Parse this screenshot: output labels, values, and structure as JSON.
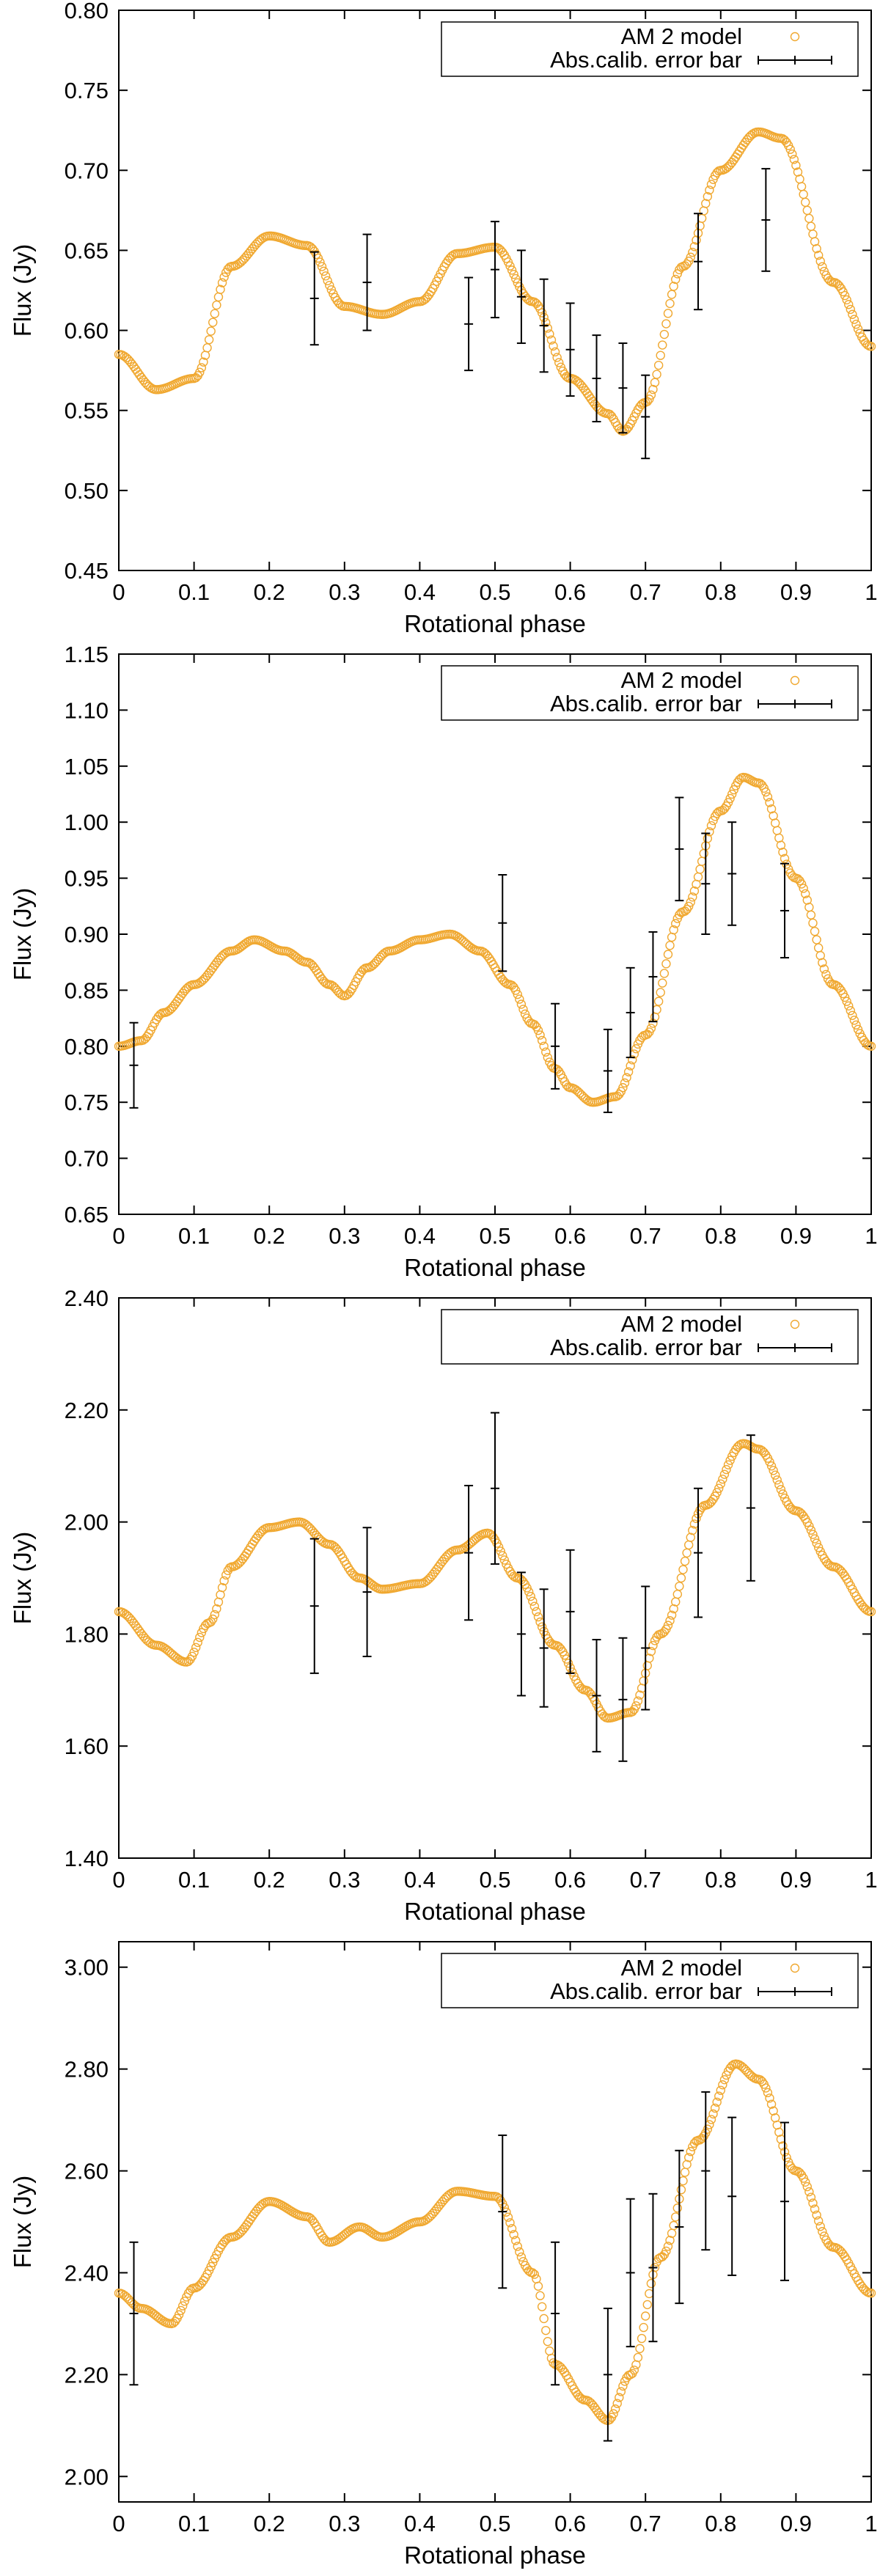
{
  "colors": {
    "model": "#f0a830",
    "errorbar": "#000000",
    "axes": "#000000",
    "background": "#ffffff"
  },
  "chart_data": [
    {
      "type": "scatter",
      "title": "",
      "xlabel": "Rotational phase",
      "ylabel": "Flux (Jy)",
      "xlim": [
        0,
        1
      ],
      "ylim": [
        0.45,
        0.8
      ],
      "xticks": [
        0,
        0.1,
        0.2,
        0.3,
        0.4,
        0.5,
        0.6,
        0.7,
        0.8,
        0.9,
        1
      ],
      "xtick_labels": [
        "0",
        "0.1",
        "0.2",
        "0.3",
        "0.4",
        "0.5",
        "0.6",
        "0.7",
        "0.8",
        "0.9",
        "1"
      ],
      "yticks": [
        0.45,
        0.5,
        0.55,
        0.6,
        0.65,
        0.7,
        0.75,
        0.8
      ],
      "ytick_labels": [
        "0.45",
        "0.50",
        "0.55",
        "0.60",
        "0.65",
        "0.70",
        "0.75",
        "0.80"
      ],
      "legend": {
        "position": "top-right",
        "entries": [
          "AM 2 model",
          "Abs.calib. error bar"
        ]
      },
      "series": [
        {
          "name": "AM 2 model",
          "kind": "curve",
          "x": [
            0.0,
            0.05,
            0.1,
            0.15,
            0.2,
            0.25,
            0.3,
            0.35,
            0.4,
            0.45,
            0.5,
            0.55,
            0.6,
            0.65,
            0.67,
            0.7,
            0.75,
            0.8,
            0.85,
            0.88,
            0.95,
            1.0
          ],
          "y": [
            0.585,
            0.563,
            0.57,
            0.64,
            0.659,
            0.653,
            0.615,
            0.61,
            0.618,
            0.648,
            0.652,
            0.618,
            0.57,
            0.548,
            0.537,
            0.555,
            0.64,
            0.7,
            0.724,
            0.72,
            0.63,
            0.59
          ]
        },
        {
          "name": "Abs.calib. error bar",
          "kind": "errorbar",
          "x": [
            0.26,
            0.33,
            0.465,
            0.5,
            0.535,
            0.565,
            0.6,
            0.635,
            0.67,
            0.7,
            0.77,
            0.86
          ],
          "y": [
            0.62,
            0.63,
            0.604,
            0.638,
            0.621,
            0.603,
            0.588,
            0.57,
            0.564,
            0.546,
            0.643,
            0.669
          ],
          "err": [
            0.029,
            0.03,
            0.029,
            0.03,
            0.029,
            0.029,
            0.029,
            0.027,
            0.028,
            0.026,
            0.03,
            0.032
          ]
        }
      ]
    },
    {
      "type": "scatter",
      "title": "",
      "xlabel": "Rotational phase",
      "ylabel": "Flux (Jy)",
      "xlim": [
        0,
        1
      ],
      "ylim": [
        0.65,
        1.15
      ],
      "xticks": [
        0,
        0.1,
        0.2,
        0.3,
        0.4,
        0.5,
        0.6,
        0.7,
        0.8,
        0.9,
        1
      ],
      "xtick_labels": [
        "0",
        "0.1",
        "0.2",
        "0.3",
        "0.4",
        "0.5",
        "0.6",
        "0.7",
        "0.8",
        "0.9",
        "1"
      ],
      "yticks": [
        0.65,
        0.7,
        0.75,
        0.8,
        0.85,
        0.9,
        0.95,
        1.0,
        1.05,
        1.1,
        1.15
      ],
      "ytick_labels": [
        "0.65",
        "0.70",
        "0.75",
        "0.80",
        "0.85",
        "0.90",
        "0.95",
        "1.00",
        "1.05",
        "1.10",
        "1.15"
      ],
      "legend": {
        "position": "top-right",
        "entries": [
          "AM 2 model",
          "Abs.calib. error bar"
        ]
      },
      "series": [
        {
          "name": "AM 2 model",
          "kind": "curve",
          "x": [
            0.0,
            0.03,
            0.06,
            0.1,
            0.15,
            0.18,
            0.22,
            0.25,
            0.28,
            0.3,
            0.33,
            0.36,
            0.4,
            0.44,
            0.48,
            0.52,
            0.55,
            0.58,
            0.6,
            0.63,
            0.66,
            0.7,
            0.75,
            0.8,
            0.83,
            0.85,
            0.9,
            0.95,
            1.0
          ],
          "y": [
            0.8,
            0.805,
            0.83,
            0.855,
            0.885,
            0.895,
            0.885,
            0.875,
            0.855,
            0.845,
            0.87,
            0.885,
            0.895,
            0.9,
            0.885,
            0.855,
            0.82,
            0.78,
            0.763,
            0.75,
            0.755,
            0.81,
            0.92,
            1.01,
            1.04,
            1.035,
            0.95,
            0.855,
            0.8
          ]
        },
        {
          "name": "Abs.calib. error bar",
          "kind": "errorbar",
          "x": [
            0.02,
            0.51,
            0.58,
            0.65,
            0.68,
            0.71,
            0.745,
            0.78,
            0.815,
            0.885
          ],
          "y": [
            0.783,
            0.91,
            0.8,
            0.778,
            0.83,
            0.862,
            0.976,
            0.945,
            0.954,
            0.921
          ],
          "err": [
            0.038,
            0.043,
            0.038,
            0.037,
            0.04,
            0.04,
            0.046,
            0.045,
            0.046,
            0.042
          ]
        }
      ]
    },
    {
      "type": "scatter",
      "title": "",
      "xlabel": "Rotational phase",
      "ylabel": "Flux (Jy)",
      "xlim": [
        0,
        1
      ],
      "ylim": [
        1.4,
        2.4
      ],
      "xticks": [
        0,
        0.1,
        0.2,
        0.3,
        0.4,
        0.5,
        0.6,
        0.7,
        0.8,
        0.9,
        1
      ],
      "xtick_labels": [
        "0",
        "0.1",
        "0.2",
        "0.3",
        "0.4",
        "0.5",
        "0.6",
        "0.7",
        "0.8",
        "0.9",
        "1"
      ],
      "yticks": [
        1.4,
        1.6,
        1.8,
        2.0,
        2.2,
        2.4
      ],
      "ytick_labels": [
        "1.40",
        "1.60",
        "1.80",
        "2.00",
        "2.20",
        "2.40"
      ],
      "legend": {
        "position": "top-right",
        "entries": [
          "AM 2 model",
          "Abs.calib. error bar"
        ]
      },
      "series": [
        {
          "name": "AM 2 model",
          "kind": "curve",
          "x": [
            0.0,
            0.05,
            0.09,
            0.12,
            0.15,
            0.2,
            0.24,
            0.28,
            0.32,
            0.35,
            0.4,
            0.45,
            0.49,
            0.53,
            0.58,
            0.62,
            0.65,
            0.68,
            0.72,
            0.78,
            0.83,
            0.85,
            0.9,
            0.95,
            1.0
          ],
          "y": [
            1.84,
            1.78,
            1.75,
            1.82,
            1.92,
            1.99,
            2.0,
            1.96,
            1.9,
            1.88,
            1.89,
            1.95,
            1.98,
            1.9,
            1.78,
            1.7,
            1.65,
            1.66,
            1.8,
            2.03,
            2.14,
            2.13,
            2.02,
            1.92,
            1.84
          ]
        },
        {
          "name": "Abs.calib. error bar",
          "kind": "errorbar",
          "x": [
            0.26,
            0.33,
            0.465,
            0.5,
            0.535,
            0.565,
            0.6,
            0.635,
            0.67,
            0.7,
            0.77,
            0.84
          ],
          "y": [
            1.85,
            1.875,
            1.945,
            2.06,
            1.8,
            1.775,
            1.84,
            1.69,
            1.683,
            1.775,
            1.945,
            2.025
          ],
          "err": [
            0.12,
            0.115,
            0.12,
            0.135,
            0.11,
            0.105,
            0.11,
            0.1,
            0.11,
            0.11,
            0.115,
            0.13
          ]
        }
      ]
    },
    {
      "type": "scatter",
      "title": "",
      "xlabel": "Rotational phase",
      "ylabel": "Flux (Jy)",
      "xlim": [
        0,
        1
      ],
      "ylim": [
        1.95,
        3.05
      ],
      "xticks": [
        0,
        0.1,
        0.2,
        0.3,
        0.4,
        0.5,
        0.6,
        0.7,
        0.8,
        0.9,
        1
      ],
      "xtick_labels": [
        "0",
        "0.1",
        "0.2",
        "0.3",
        "0.4",
        "0.5",
        "0.6",
        "0.7",
        "0.8",
        "0.9",
        "1"
      ],
      "yticks": [
        2.0,
        2.2,
        2.4,
        2.6,
        2.8,
        3.0
      ],
      "ytick_labels": [
        "2.00",
        "2.20",
        "2.40",
        "2.60",
        "2.80",
        "3.00"
      ],
      "legend": {
        "position": "top-right",
        "entries": [
          "AM 2 model",
          "Abs.calib. error bar"
        ]
      },
      "series": [
        {
          "name": "AM 2 model",
          "kind": "curve",
          "x": [
            0.0,
            0.03,
            0.07,
            0.1,
            0.15,
            0.2,
            0.25,
            0.28,
            0.32,
            0.35,
            0.4,
            0.45,
            0.5,
            0.55,
            0.58,
            0.62,
            0.65,
            0.68,
            0.72,
            0.77,
            0.82,
            0.85,
            0.9,
            0.95,
            1.0
          ],
          "y": [
            2.36,
            2.33,
            2.3,
            2.37,
            2.47,
            2.54,
            2.51,
            2.46,
            2.49,
            2.47,
            2.5,
            2.56,
            2.55,
            2.4,
            2.22,
            2.15,
            2.11,
            2.2,
            2.43,
            2.66,
            2.81,
            2.78,
            2.6,
            2.45,
            2.36
          ]
        },
        {
          "name": "Abs.calib. error bar",
          "kind": "errorbar",
          "x": [
            0.02,
            0.51,
            0.58,
            0.65,
            0.68,
            0.71,
            0.745,
            0.78,
            0.815,
            0.885
          ],
          "y": [
            2.32,
            2.52,
            2.32,
            2.2,
            2.4,
            2.41,
            2.49,
            2.6,
            2.55,
            2.54
          ],
          "err": [
            0.14,
            0.15,
            0.14,
            0.13,
            0.145,
            0.145,
            0.15,
            0.155,
            0.155,
            0.155
          ]
        }
      ]
    }
  ]
}
